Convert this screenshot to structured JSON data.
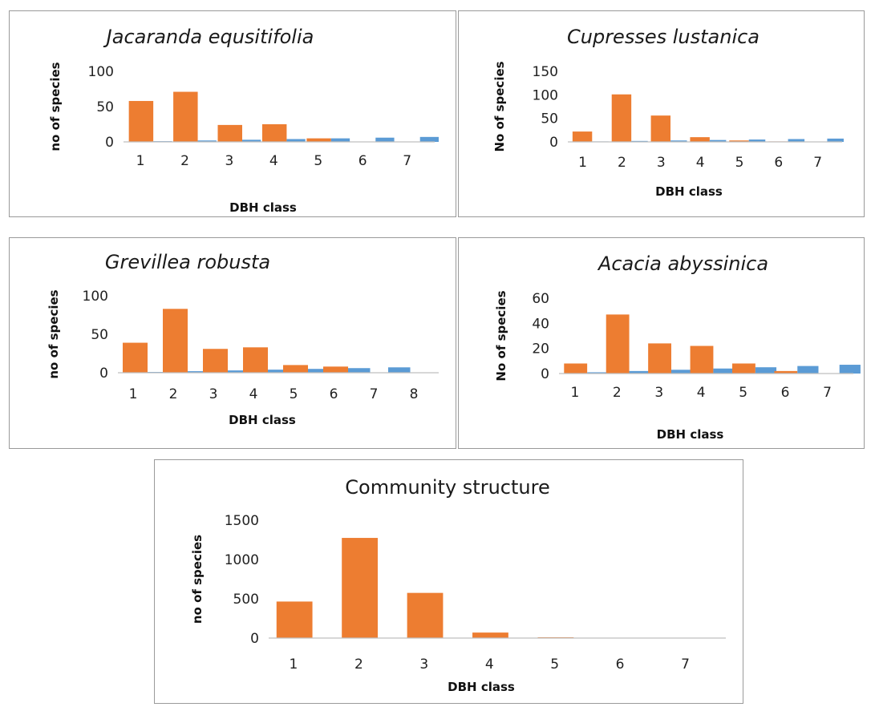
{
  "chart_data": [
    {
      "type": "bar",
      "title": "Jacaranda equsitifolia",
      "title_italic": true,
      "xlabel": "DBH class",
      "ylabel": "no of species",
      "categories": [
        "1",
        "2",
        "3",
        "4",
        "5",
        "6",
        "7"
      ],
      "ylim": [
        0,
        100
      ],
      "yticks": [
        "0",
        "50",
        "100"
      ],
      "series": [
        {
          "color": "#ED7D31",
          "values": [
            58,
            71,
            24,
            25,
            5,
            0,
            0
          ]
        },
        {
          "color": "#5B9BD5",
          "values": [
            1,
            2,
            3,
            4,
            5,
            6,
            7
          ]
        }
      ]
    },
    {
      "type": "bar",
      "title": "Cupresses lustanica",
      "title_italic": true,
      "xlabel": "DBH class",
      "ylabel": "No of species",
      "categories": [
        "1",
        "2",
        "3",
        "4",
        "5",
        "6",
        "7"
      ],
      "ylim": [
        0,
        150
      ],
      "yticks": [
        "0",
        "50",
        "100",
        "150"
      ],
      "series": [
        {
          "color": "#ED7D31",
          "values": [
            22,
            101,
            56,
            10,
            3,
            1,
            0
          ]
        },
        {
          "color": "#5B9BD5",
          "values": [
            1,
            2,
            3,
            4,
            5,
            6,
            7
          ]
        }
      ]
    },
    {
      "type": "bar",
      "title": "Grevillea robusta",
      "title_italic": true,
      "xlabel": "DBH class",
      "ylabel": "no of species",
      "categories": [
        "1",
        "2",
        "3",
        "4",
        "5",
        "6",
        "7",
        "8"
      ],
      "ylim": [
        0,
        100
      ],
      "yticks": [
        "0",
        "50",
        "100"
      ],
      "series": [
        {
          "color": "#ED7D31",
          "values": [
            39,
            83,
            31,
            33,
            10,
            8,
            0,
            0
          ]
        },
        {
          "color": "#5B9BD5",
          "values": [
            1,
            2,
            3,
            4,
            5,
            6,
            7,
            0
          ]
        }
      ]
    },
    {
      "type": "bar",
      "title": "Acacia abyssinica",
      "title_italic": true,
      "xlabel": "DBH class",
      "ylabel": "No of species",
      "categories": [
        "1",
        "2",
        "3",
        "4",
        "5",
        "6",
        "7"
      ],
      "ylim": [
        0,
        60
      ],
      "yticks": [
        "0",
        "20",
        "40",
        "60"
      ],
      "series": [
        {
          "color": "#ED7D31",
          "values": [
            8,
            47,
            24,
            22,
            8,
            2,
            0
          ]
        },
        {
          "color": "#5B9BD5",
          "values": [
            1,
            2,
            3,
            4,
            5,
            6,
            7
          ]
        }
      ]
    },
    {
      "type": "bar",
      "title": "Community structure",
      "title_italic": false,
      "xlabel": "DBH class",
      "ylabel": "no of species",
      "categories": [
        "1",
        "2",
        "3",
        "4",
        "5",
        "6",
        "7"
      ],
      "ylim": [
        0,
        1500
      ],
      "yticks": [
        "0",
        "500",
        "1000",
        "1500"
      ],
      "series": [
        {
          "color": "#ED7D31",
          "values": [
            465,
            1275,
            575,
            70,
            10,
            3,
            0
          ]
        }
      ]
    }
  ]
}
